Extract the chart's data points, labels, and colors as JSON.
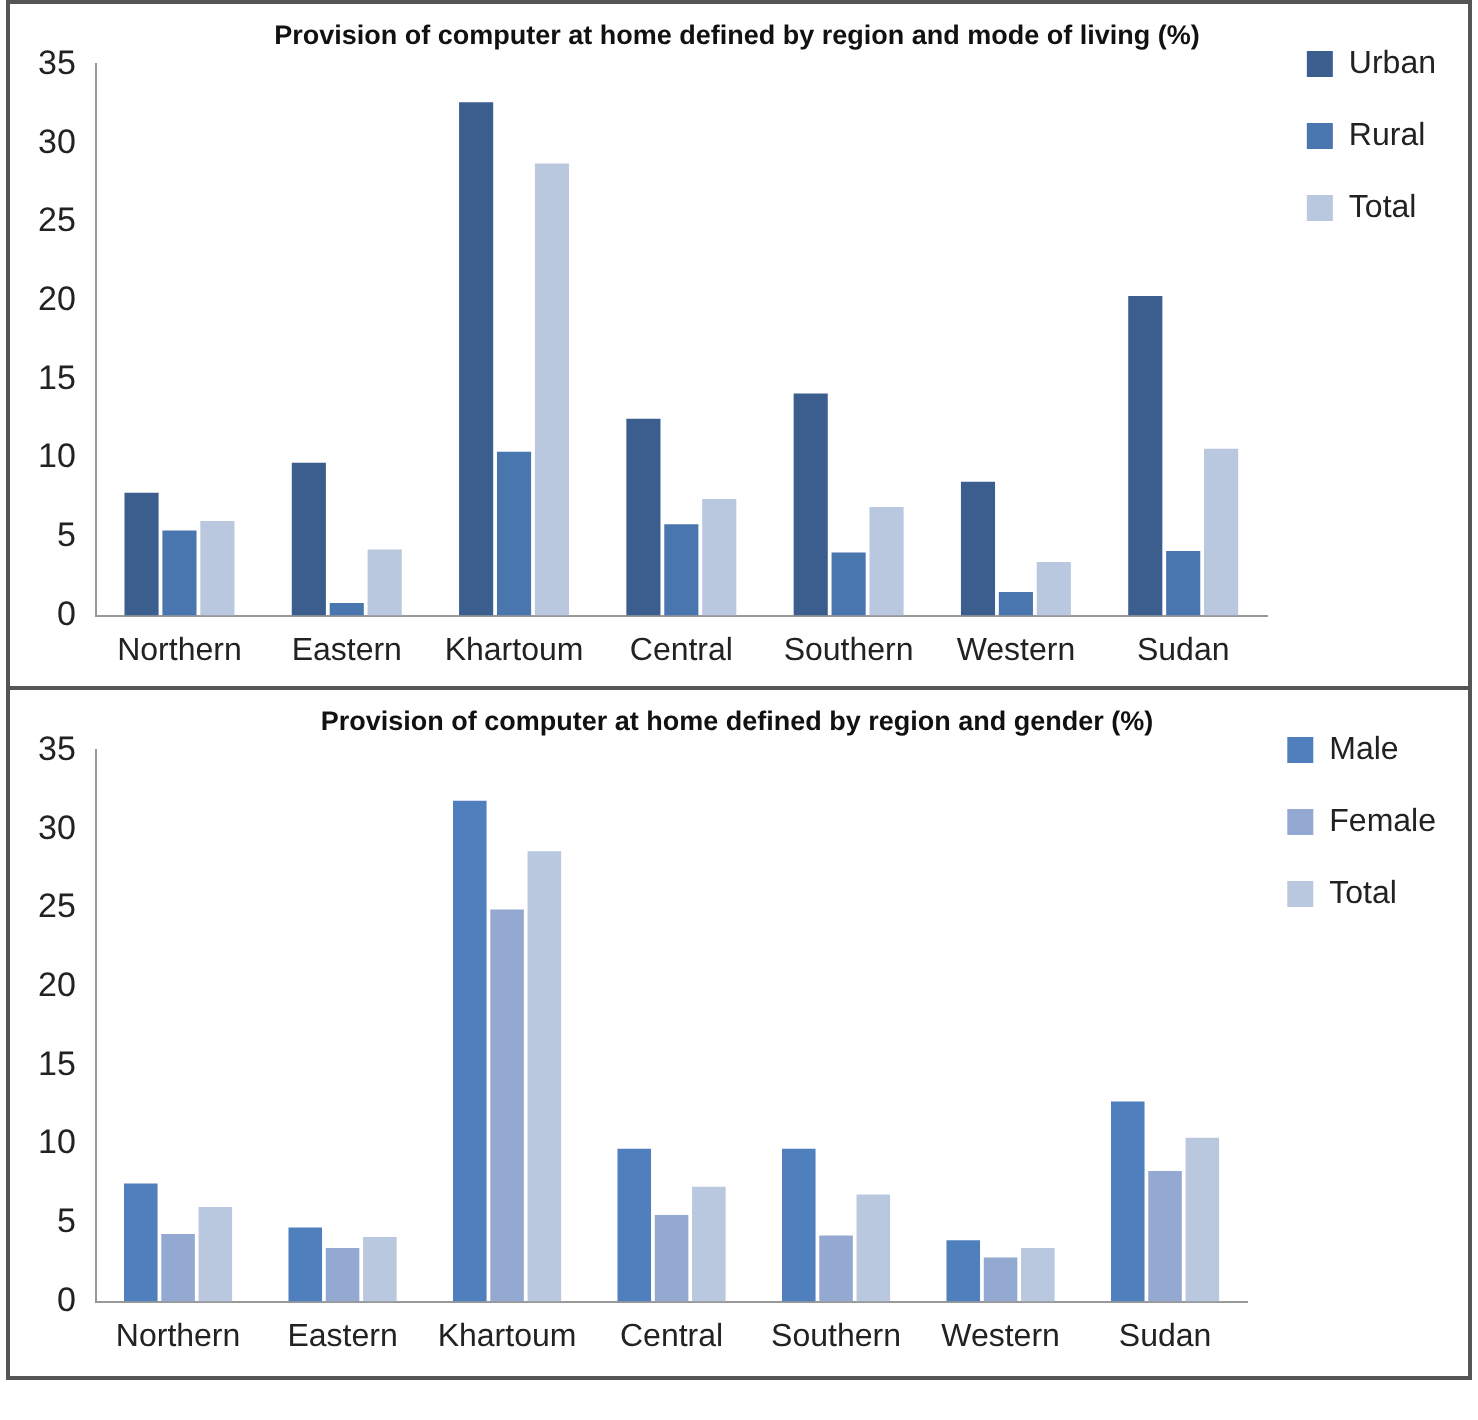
{
  "chart_data": [
    {
      "type": "bar",
      "title": "Provision of computer at home defined by region and mode of living (%)",
      "categories": [
        "Northern",
        "Eastern",
        "Khartoum",
        "Central",
        "Southern",
        "Western",
        "Sudan"
      ],
      "series": [
        {
          "name": "Urban",
          "color": "#3b5e8f",
          "values": [
            7.8,
            9.7,
            32.6,
            12.5,
            14.1,
            8.5,
            20.3
          ]
        },
        {
          "name": "Rural",
          "color": "#4a76b0",
          "values": [
            5.4,
            0.8,
            10.4,
            5.8,
            4.0,
            1.5,
            4.1
          ]
        },
        {
          "name": "Total",
          "color": "#b9c7df",
          "values": [
            6.0,
            4.2,
            28.7,
            7.4,
            6.9,
            3.4,
            10.6
          ]
        }
      ],
      "ylim": [
        0,
        35
      ],
      "yticks": [
        0,
        5,
        10,
        15,
        20,
        25,
        30,
        35
      ],
      "grid": false,
      "legend": "top right"
    },
    {
      "type": "bar",
      "title": "Provision of computer at home defined by region and gender (%)",
      "categories": [
        "Northern",
        "Eastern",
        "Khartoum",
        "Central",
        "Southern",
        "Western",
        "Sudan"
      ],
      "series": [
        {
          "name": "Male",
          "color": "#4f7fbd",
          "values": [
            7.5,
            4.7,
            31.8,
            9.7,
            9.7,
            3.9,
            12.7
          ]
        },
        {
          "name": "Female",
          "color": "#93a9d1",
          "values": [
            4.3,
            3.4,
            24.9,
            5.5,
            4.2,
            2.8,
            8.3
          ]
        },
        {
          "name": "Total",
          "color": "#b9c7df",
          "values": [
            6.0,
            4.1,
            28.6,
            7.3,
            6.8,
            3.4,
            10.4
          ]
        }
      ],
      "ylim": [
        0,
        35
      ],
      "yticks": [
        0,
        5,
        10,
        15,
        20,
        25,
        30,
        35
      ],
      "grid": false,
      "legend": "top right"
    }
  ]
}
